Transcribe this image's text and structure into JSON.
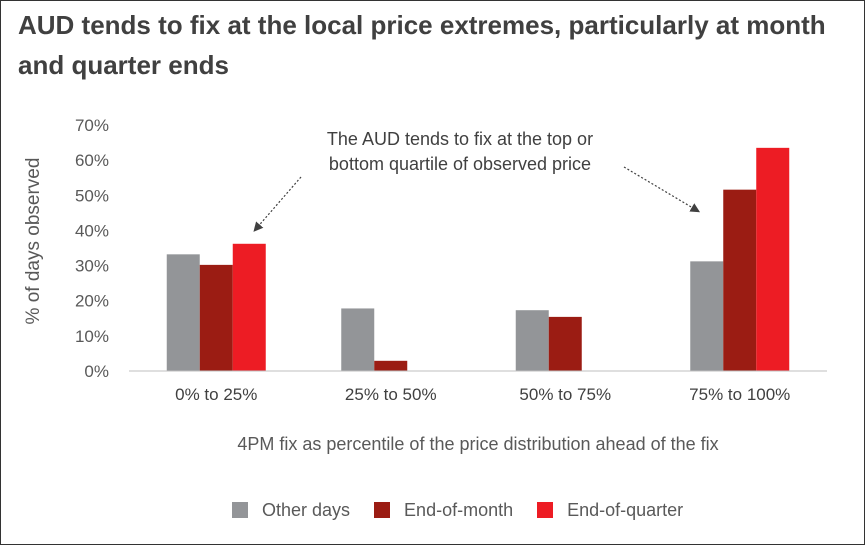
{
  "chart_data": {
    "type": "bar",
    "title": "AUD tends to fix at the local price extremes, particularly at month and quarter ends",
    "xlabel": "4PM fix as percentile of the price distribution ahead of the fix",
    "ylabel": "% of days observed",
    "categories": [
      "0% to 25%",
      "25% to 50%",
      "50% to 75%",
      "75% to 100%"
    ],
    "series": [
      {
        "name": "Other days",
        "color": "#939598",
        "values": [
          33.2,
          17.8,
          17.3,
          31.2
        ]
      },
      {
        "name": "End-of-month",
        "color": "#9B1C13",
        "values": [
          30.2,
          2.9,
          15.4,
          51.6
        ]
      },
      {
        "name": "End-of-quarter",
        "color": "#ED1C24",
        "values": [
          36.2,
          0,
          0,
          63.5
        ]
      }
    ],
    "ylim": [
      0,
      70
    ],
    "yticks": [
      "0%",
      "10%",
      "20%",
      "30%",
      "40%",
      "50%",
      "60%",
      "70%"
    ],
    "grid": false,
    "legend_position": "bottom",
    "annotation": {
      "line1": "The AUD tends to fix at the top or",
      "line2": "bottom quartile of observed price"
    }
  }
}
